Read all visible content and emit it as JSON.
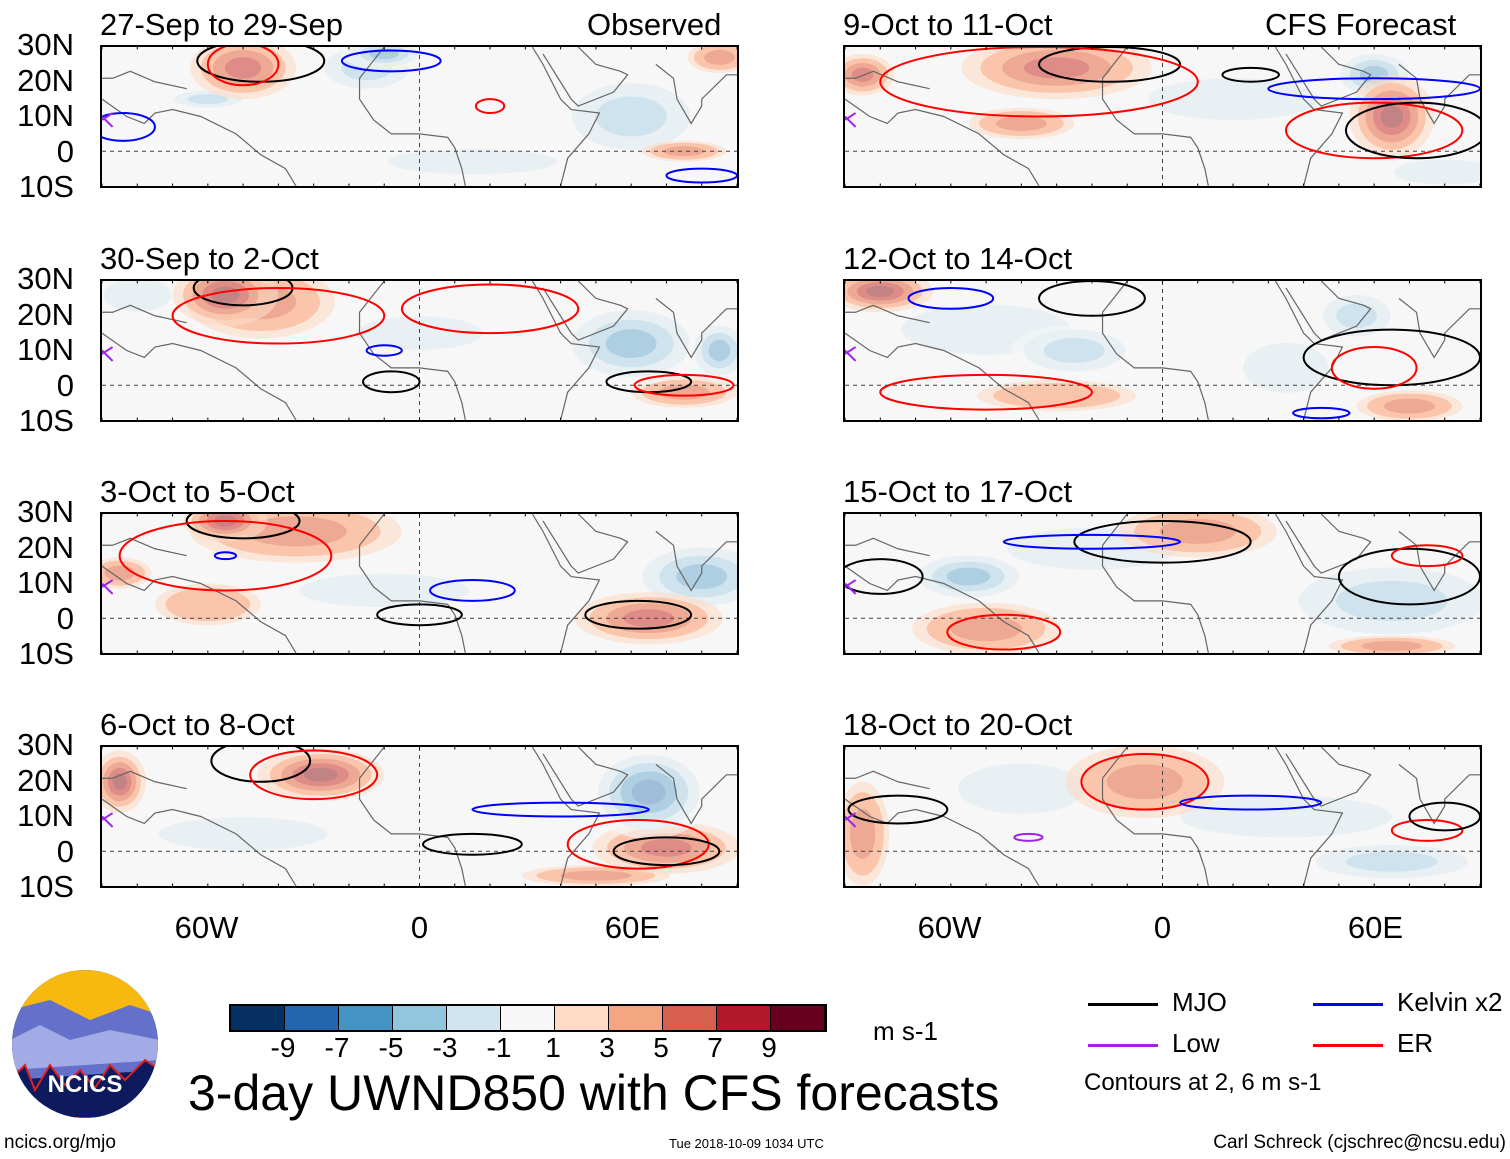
{
  "header": {
    "left_label": "Observed",
    "right_label": "CFS Forecast"
  },
  "lat_labels": [
    "30N",
    "20N",
    "10N",
    "0",
    "10S"
  ],
  "lon_labels": [
    "60W",
    "0",
    "60E"
  ],
  "colorbar": {
    "colors": [
      "#053061",
      "#2166ac",
      "#4393c3",
      "#92c5de",
      "#d1e5f0",
      "#f7f7f7",
      "#fddbc7",
      "#f4a582",
      "#d6604d",
      "#b2182b",
      "#67001f"
    ],
    "labels": [
      "-9",
      "-7",
      "-5",
      "-3",
      "-1",
      "1",
      "3",
      "5",
      "7",
      "9"
    ],
    "units": "m s-1"
  },
  "legend": {
    "items": [
      {
        "label": "MJO",
        "color": "#000000"
      },
      {
        "label": "Kelvin x2",
        "color": "#0000ff"
      },
      {
        "label": "Low",
        "color": "#a020f0"
      },
      {
        "label": "ER",
        "color": "#ff0000"
      }
    ],
    "note": "Contours at 2, 6 m s-1"
  },
  "title": "3-day UWND850 with CFS forecasts",
  "logo_text": "NCICS",
  "footer": {
    "url": "ncics.org/mjo",
    "timestamp": "Tue 2018-10-09 1034 UTC",
    "author": "Carl Schreck (cjschrec@ncsu.edu)"
  },
  "chart_data": {
    "type": "heatmap",
    "variable": "850-hPa zonal wind anomaly",
    "units": "m s-1",
    "lon_range": [
      -90,
      90
    ],
    "lat_range": [
      -10,
      30
    ],
    "panels": [
      {
        "title": "27-Sep to 29-Sep",
        "col": 0,
        "row": 0,
        "fill": [
          {
            "lon": -50,
            "lat": 24,
            "rx": 10,
            "ry": 6,
            "v": 7
          },
          {
            "lon": -15,
            "lat": 24,
            "rx": 10,
            "ry": 5,
            "v": -5
          },
          {
            "lon": -60,
            "lat": 15,
            "rx": 8,
            "ry": 2,
            "v": -5
          },
          {
            "lon": 60,
            "lat": 10,
            "rx": 14,
            "ry": 8,
            "v": -5
          },
          {
            "lon": 85,
            "lat": 27,
            "rx": 6,
            "ry": 3,
            "v": 5
          },
          {
            "lon": 15,
            "lat": -3,
            "rx": 20,
            "ry": 3,
            "v": -3
          },
          {
            "lon": -10,
            "lat": 28,
            "rx": 8,
            "ry": 3,
            "v": -7
          },
          {
            "lon": 75,
            "lat": 0,
            "rx": 8,
            "ry": 2,
            "v": 5
          }
        ],
        "contours": [
          {
            "t": "MJO",
            "lon": -45,
            "lat": 26,
            "rx": 18,
            "ry": 6
          },
          {
            "t": "ER",
            "lon": -50,
            "lat": 25,
            "rx": 10,
            "ry": 6
          },
          {
            "t": "Kelvin",
            "lon": -84,
            "lat": 7,
            "rx": 9,
            "ry": 4
          },
          {
            "t": "Kelvin",
            "lon": -8,
            "lat": 26,
            "rx": 14,
            "ry": 3
          },
          {
            "t": "ER",
            "lon": 20,
            "lat": 13,
            "rx": 4,
            "ry": 2
          },
          {
            "t": "Kelvin",
            "lon": 80,
            "lat": -7,
            "rx": 10,
            "ry": 2
          }
        ]
      },
      {
        "title": "30-Sep to 2-Oct",
        "col": 0,
        "row": 1,
        "fill": [
          {
            "lon": -55,
            "lat": 26,
            "rx": 10,
            "ry": 6,
            "v": 9
          },
          {
            "lon": -45,
            "lat": 24,
            "rx": 14,
            "ry": 7,
            "v": 5
          },
          {
            "lon": 60,
            "lat": 12,
            "rx": 14,
            "ry": 8,
            "v": -7
          },
          {
            "lon": 85,
            "lat": 10,
            "rx": 6,
            "ry": 6,
            "v": -7
          },
          {
            "lon": -80,
            "lat": 26,
            "rx": 8,
            "ry": 4,
            "v": -3
          },
          {
            "lon": 75,
            "lat": -2,
            "rx": 10,
            "ry": 3,
            "v": 5
          },
          {
            "lon": 0,
            "lat": 15,
            "rx": 15,
            "ry": 4,
            "v": -3
          }
        ],
        "contours": [
          {
            "t": "MJO",
            "lon": -50,
            "lat": 28,
            "rx": 14,
            "ry": 5
          },
          {
            "t": "ER",
            "lon": -40,
            "lat": 20,
            "rx": 30,
            "ry": 8
          },
          {
            "t": "MJO",
            "lon": -8,
            "lat": 1,
            "rx": 8,
            "ry": 3
          },
          {
            "t": "MJO",
            "lon": 65,
            "lat": 1,
            "rx": 12,
            "ry": 3
          },
          {
            "t": "ER",
            "lon": 75,
            "lat": 0,
            "rx": 14,
            "ry": 3
          },
          {
            "t": "Kelvin",
            "lon": -10,
            "lat": 10,
            "rx": 5,
            "ry": 1.5
          },
          {
            "t": "ER",
            "lon": 20,
            "lat": 22,
            "rx": 25,
            "ry": 7
          }
        ]
      },
      {
        "title": "3-Oct to 5-Oct",
        "col": 0,
        "row": 2,
        "fill": [
          {
            "lon": -55,
            "lat": 28,
            "rx": 8,
            "ry": 4,
            "v": 9
          },
          {
            "lon": -35,
            "lat": 25,
            "rx": 20,
            "ry": 6,
            "v": 5
          },
          {
            "lon": 80,
            "lat": 12,
            "rx": 14,
            "ry": 7,
            "v": -7
          },
          {
            "lon": 65,
            "lat": 0,
            "rx": 14,
            "ry": 5,
            "v": 7
          },
          {
            "lon": -85,
            "lat": 13,
            "rx": 6,
            "ry": 3,
            "v": 5
          },
          {
            "lon": -10,
            "lat": 8,
            "rx": 20,
            "ry": 4,
            "v": -3
          },
          {
            "lon": -60,
            "lat": 4,
            "rx": 10,
            "ry": 4,
            "v": 3
          }
        ],
        "contours": [
          {
            "t": "MJO",
            "lon": -50,
            "lat": 28,
            "rx": 16,
            "ry": 5
          },
          {
            "t": "ER",
            "lon": -55,
            "lat": 18,
            "rx": 30,
            "ry": 10
          },
          {
            "t": "MJO",
            "lon": 0,
            "lat": 1,
            "rx": 12,
            "ry": 3
          },
          {
            "t": "MJO",
            "lon": 62,
            "lat": 1,
            "rx": 15,
            "ry": 4
          },
          {
            "t": "Kelvin",
            "lon": 15,
            "lat": 8,
            "rx": 12,
            "ry": 3
          },
          {
            "t": "Kelvin",
            "lon": -55,
            "lat": 18,
            "rx": 3,
            "ry": 1
          }
        ]
      },
      {
        "title": "6-Oct to 8-Oct",
        "col": 0,
        "row": 3,
        "fill": [
          {
            "lon": -28,
            "lat": 22,
            "rx": 12,
            "ry": 5,
            "v": 9
          },
          {
            "lon": 65,
            "lat": 17,
            "rx": 12,
            "ry": 9,
            "v": -9
          },
          {
            "lon": 70,
            "lat": 1,
            "rx": 14,
            "ry": 5,
            "v": 7
          },
          {
            "lon": -85,
            "lat": 20,
            "rx": 5,
            "ry": 6,
            "v": 9
          },
          {
            "lon": -50,
            "lat": 5,
            "rx": 20,
            "ry": 4,
            "v": -3
          },
          {
            "lon": 50,
            "lat": -7,
            "rx": 14,
            "ry": 2,
            "v": 5
          }
        ],
        "contours": [
          {
            "t": "MJO",
            "lon": -45,
            "lat": 26,
            "rx": 14,
            "ry": 6
          },
          {
            "t": "ER",
            "lon": -30,
            "lat": 22,
            "rx": 18,
            "ry": 7
          },
          {
            "t": "Kelvin",
            "lon": 40,
            "lat": 12,
            "rx": 25,
            "ry": 2
          },
          {
            "t": "ER",
            "lon": 62,
            "lat": 2,
            "rx": 20,
            "ry": 7
          },
          {
            "t": "MJO",
            "lon": 15,
            "lat": 2,
            "rx": 14,
            "ry": 3
          },
          {
            "t": "MJO",
            "lon": 70,
            "lat": 0,
            "rx": 15,
            "ry": 4
          }
        ]
      },
      {
        "title": "9-Oct to 11-Oct",
        "col": 1,
        "row": 0,
        "fill": [
          {
            "lon": -30,
            "lat": 24,
            "rx": 18,
            "ry": 6,
            "v": 7
          },
          {
            "lon": 65,
            "lat": 10,
            "rx": 8,
            "ry": 8,
            "v": 9
          },
          {
            "lon": 60,
            "lat": 22,
            "rx": 8,
            "ry": 5,
            "v": -7
          },
          {
            "lon": -85,
            "lat": 22,
            "rx": 6,
            "ry": 4,
            "v": 7
          },
          {
            "lon": -40,
            "lat": 8,
            "rx": 10,
            "ry": 3,
            "v": 5
          },
          {
            "lon": 20,
            "lat": 15,
            "rx": 20,
            "ry": 5,
            "v": -3
          },
          {
            "lon": 80,
            "lat": -6,
            "rx": 12,
            "ry": 3,
            "v": -3
          }
        ],
        "contours": [
          {
            "t": "MJO",
            "lon": -15,
            "lat": 25,
            "rx": 20,
            "ry": 5
          },
          {
            "t": "ER",
            "lon": -35,
            "lat": 20,
            "rx": 45,
            "ry": 10
          },
          {
            "t": "ER",
            "lon": 60,
            "lat": 6,
            "rx": 25,
            "ry": 8
          },
          {
            "t": "MJO",
            "lon": 72,
            "lat": 6,
            "rx": 20,
            "ry": 8
          },
          {
            "t": "Kelvin",
            "lon": 60,
            "lat": 18,
            "rx": 30,
            "ry": 3
          },
          {
            "t": "MJO",
            "lon": 25,
            "lat": 22,
            "rx": 8,
            "ry": 2
          }
        ]
      },
      {
        "title": "12-Oct to 14-Oct",
        "col": 1,
        "row": 1,
        "fill": [
          {
            "lon": -80,
            "lat": 27,
            "rx": 10,
            "ry": 4,
            "v": 9
          },
          {
            "lon": -25,
            "lat": 10,
            "rx": 12,
            "ry": 5,
            "v": -5
          },
          {
            "lon": 55,
            "lat": 20,
            "rx": 8,
            "ry": 5,
            "v": -5
          },
          {
            "lon": 70,
            "lat": -6,
            "rx": 10,
            "ry": 3,
            "v": 5
          },
          {
            "lon": -50,
            "lat": 16,
            "rx": 20,
            "ry": 6,
            "v": -3
          },
          {
            "lon": -30,
            "lat": -3,
            "rx": 15,
            "ry": 3,
            "v": 3
          },
          {
            "lon": 35,
            "lat": 5,
            "rx": 10,
            "ry": 6,
            "v": -3
          }
        ],
        "contours": [
          {
            "t": "MJO",
            "lon": -20,
            "lat": 25,
            "rx": 15,
            "ry": 5
          },
          {
            "t": "ER",
            "lon": -50,
            "lat": -2,
            "rx": 30,
            "ry": 5
          },
          {
            "t": "MJO",
            "lon": 65,
            "lat": 8,
            "rx": 25,
            "ry": 8
          },
          {
            "t": "ER",
            "lon": 60,
            "lat": 5,
            "rx": 12,
            "ry": 6
          },
          {
            "t": "Kelvin",
            "lon": -60,
            "lat": 25,
            "rx": 12,
            "ry": 3
          },
          {
            "t": "Kelvin",
            "lon": 45,
            "lat": -8,
            "rx": 8,
            "ry": 1.5
          }
        ]
      },
      {
        "title": "15-Oct to 17-Oct",
        "col": 1,
        "row": 2,
        "fill": [
          {
            "lon": -55,
            "lat": 12,
            "rx": 12,
            "ry": 5,
            "v": -7
          },
          {
            "lon": 10,
            "lat": 25,
            "rx": 15,
            "ry": 5,
            "v": 5
          },
          {
            "lon": 65,
            "lat": 5,
            "rx": 22,
            "ry": 8,
            "v": -5
          },
          {
            "lon": -50,
            "lat": -3,
            "rx": 14,
            "ry": 5,
            "v": 5
          },
          {
            "lon": 65,
            "lat": -8,
            "rx": 12,
            "ry": 2,
            "v": 5
          },
          {
            "lon": -20,
            "lat": 20,
            "rx": 20,
            "ry": 5,
            "v": -3
          }
        ],
        "contours": [
          {
            "t": "MJO",
            "lon": 0,
            "lat": 22,
            "rx": 25,
            "ry": 6
          },
          {
            "t": "Kelvin",
            "lon": -20,
            "lat": 22,
            "rx": 25,
            "ry": 2
          },
          {
            "t": "ER",
            "lon": -45,
            "lat": -4,
            "rx": 16,
            "ry": 5
          },
          {
            "t": "MJO",
            "lon": 70,
            "lat": 12,
            "rx": 20,
            "ry": 8
          },
          {
            "t": "MJO",
            "lon": -80,
            "lat": 12,
            "rx": 12,
            "ry": 5
          },
          {
            "t": "ER",
            "lon": 75,
            "lat": 18,
            "rx": 10,
            "ry": 3
          }
        ]
      },
      {
        "title": "18-Oct to 20-Oct",
        "col": 1,
        "row": 3,
        "fill": [
          {
            "lon": -5,
            "lat": 20,
            "rx": 15,
            "ry": 7,
            "v": 5
          },
          {
            "lon": -40,
            "lat": 18,
            "rx": 15,
            "ry": 6,
            "v": -3
          },
          {
            "lon": 65,
            "lat": -3,
            "rx": 18,
            "ry": 4,
            "v": -5
          },
          {
            "lon": -85,
            "lat": 5,
            "rx": 5,
            "ry": 10,
            "v": 5
          },
          {
            "lon": 35,
            "lat": 10,
            "rx": 25,
            "ry": 5,
            "v": -3
          }
        ],
        "contours": [
          {
            "t": "ER",
            "lon": -5,
            "lat": 20,
            "rx": 18,
            "ry": 8
          },
          {
            "t": "Kelvin",
            "lon": 25,
            "lat": 14,
            "rx": 20,
            "ry": 2
          },
          {
            "t": "ER",
            "lon": 75,
            "lat": 6,
            "rx": 10,
            "ry": 3
          },
          {
            "t": "Low",
            "lon": -38,
            "lat": 4,
            "rx": 4,
            "ry": 1
          },
          {
            "t": "MJO",
            "lon": -75,
            "lat": 12,
            "rx": 14,
            "ry": 4
          },
          {
            "t": "MJO",
            "lon": 80,
            "lat": 10,
            "rx": 10,
            "ry": 4
          }
        ]
      }
    ]
  }
}
